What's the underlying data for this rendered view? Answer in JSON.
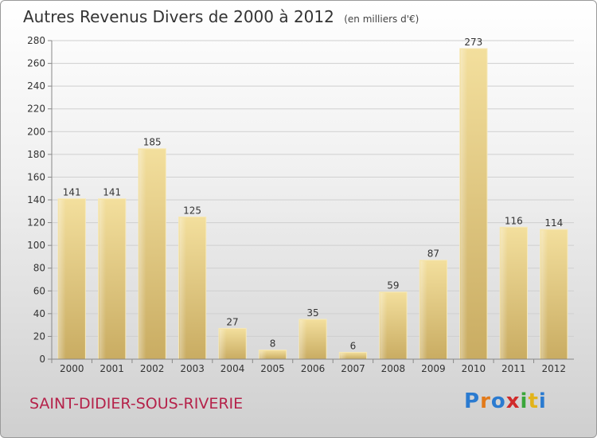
{
  "chart_data": {
    "type": "bar",
    "title": "Autres Revenus Divers de 2000 à 2012",
    "subtitle": "(en milliers d'€)",
    "categories": [
      "2000",
      "2001",
      "2002",
      "2003",
      "2004",
      "2005",
      "2006",
      "2007",
      "2008",
      "2009",
      "2010",
      "2011",
      "2012"
    ],
    "values": [
      141,
      141,
      185,
      125,
      27,
      8,
      35,
      6,
      59,
      87,
      273,
      116,
      114
    ],
    "ylim": [
      0,
      280
    ],
    "yticks": [
      0,
      20,
      40,
      60,
      80,
      100,
      120,
      140,
      160,
      180,
      200,
      220,
      240,
      260,
      280
    ],
    "grid": true,
    "bar_color": "#e3c77e"
  },
  "footer": {
    "commune": "SAINT-DIDIER-SOUS-RIVERIE",
    "logo": "Proxiti"
  }
}
